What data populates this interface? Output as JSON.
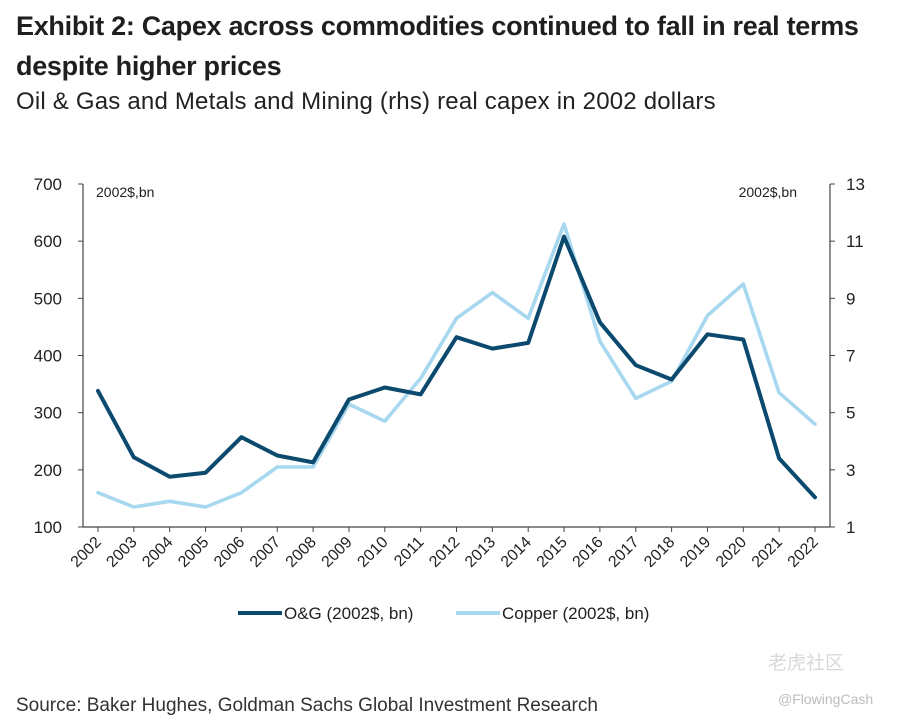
{
  "header": {
    "title": "Exhibit 2: Capex across commodities continued to fall in real terms despite higher prices",
    "subtitle": "Oil & Gas and Metals and Mining (rhs) real capex in 2002 dollars"
  },
  "footer": {
    "source": "Source: Baker Hughes, Goldman Sachs Global Investment Research"
  },
  "watermark": {
    "site": "老虎社区",
    "handle": "@FlowingCash"
  },
  "chart_data": {
    "type": "line",
    "title": "Exhibit 2: Capex across commodities continued to fall in real terms despite higher prices",
    "subtitle": "Oil & Gas and Metals and Mining (rhs) real capex in 2002 dollars",
    "y_left_unit": "2002$,bn",
    "y_right_unit": "2002$,bn",
    "y_left_range": [
      100,
      700
    ],
    "y_left_ticks": [
      100,
      200,
      300,
      400,
      500,
      600,
      700
    ],
    "y_right_range": [
      1,
      13
    ],
    "y_right_ticks": [
      1,
      3,
      5,
      7,
      9,
      11,
      13
    ],
    "categories": [
      "2002",
      "2003",
      "2004",
      "2005",
      "2006",
      "2007",
      "2008",
      "2009",
      "2010",
      "2011",
      "2012",
      "2013",
      "2014",
      "2015",
      "2016",
      "2017",
      "2018",
      "2019",
      "2020",
      "2021",
      "2022"
    ],
    "series": [
      {
        "name": "O&G (2002$, bn)",
        "axis": "left",
        "color": "#0b4a6e",
        "values": [
          338,
          222,
          188,
          195,
          257,
          225,
          213,
          323,
          344,
          332,
          432,
          412,
          422,
          608,
          458,
          383,
          358,
          437,
          428,
          220,
          152
        ]
      },
      {
        "name": "Copper (2002$, bn)",
        "axis": "right",
        "color": "#a7d8f0",
        "values": [
          2.2,
          1.7,
          1.9,
          1.7,
          2.2,
          3.1,
          3.1,
          5.3,
          4.7,
          6.2,
          8.3,
          9.2,
          8.3,
          11.6,
          7.5,
          5.5,
          6.1,
          8.4,
          9.5,
          5.7,
          4.6
        ]
      }
    ],
    "legend_position": "bottom-center",
    "grid": false
  }
}
